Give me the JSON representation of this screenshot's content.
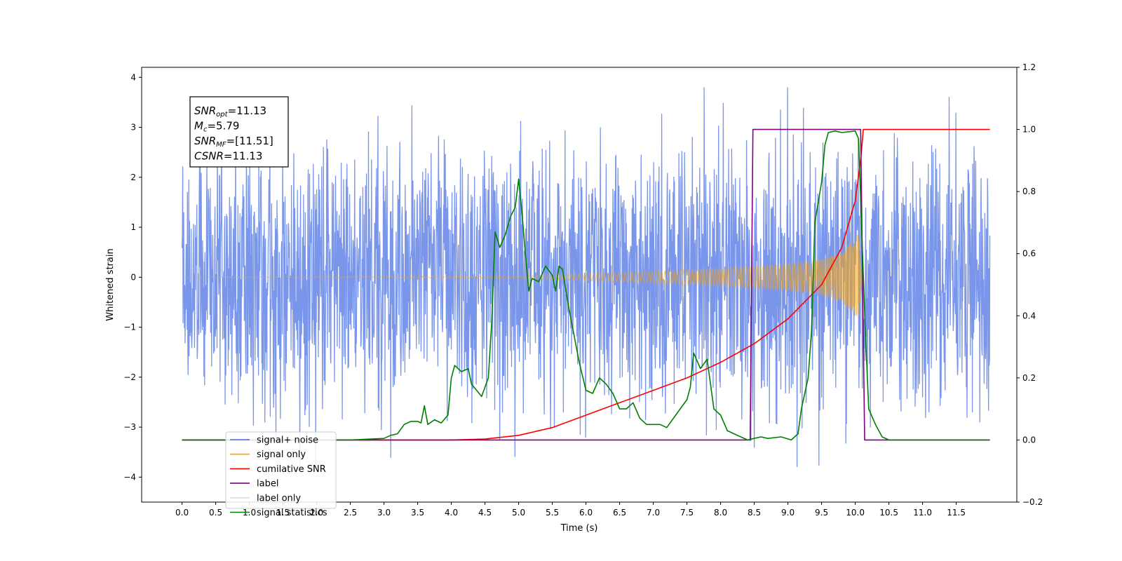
{
  "chart_data": {
    "type": "line",
    "xlabel": "Time (s)",
    "ylabel_left": "Whitened strain",
    "xlim": [
      -0.6,
      12.4
    ],
    "ylim_left": [
      -4.5,
      4.2
    ],
    "ylim_right": [
      -0.2,
      1.2
    ],
    "xticks": [
      0.0,
      0.5,
      1.0,
      1.5,
      2.0,
      2.5,
      3.0,
      3.5,
      4.0,
      4.5,
      5.0,
      5.5,
      6.0,
      6.5,
      7.0,
      7.5,
      8.0,
      8.5,
      9.0,
      9.5,
      10.0,
      10.5,
      11.0,
      11.5
    ],
    "xtick_labels": [
      "0.0",
      "0.5",
      "1.0",
      "1.5",
      "2.0",
      "2.5",
      "3.0",
      "3.5",
      "4.0",
      "4.5",
      "5.0",
      "5.5",
      "6.0",
      "6.5",
      "7.0",
      "7.5",
      "8.0",
      "8.5",
      "9.0",
      "9.5",
      "10.0",
      "10.5",
      "11.0",
      "11.5"
    ],
    "yticks_left": [
      4,
      3,
      2,
      1,
      0,
      -1,
      -2,
      -3,
      -4
    ],
    "ytick_labels_left": [
      "4",
      "3",
      "2",
      "1",
      "0",
      "−1",
      "−2",
      "−3",
      "−4"
    ],
    "yticks_right": [
      1.2,
      1.0,
      0.8,
      0.6,
      0.4,
      0.2,
      0.0,
      -0.2
    ],
    "ytick_labels_right": [
      "1.2",
      "1.0",
      "0.8",
      "0.6",
      "0.4",
      "0.2",
      "0.0",
      "−0.2"
    ],
    "grid": false,
    "legend_position": "lower-left",
    "annotation_box": [
      {
        "base": "SNR",
        "sub": "opt",
        "value": "=11.13"
      },
      {
        "base": "M",
        "sub": "c",
        "value": "=5.79"
      },
      {
        "base": "SNR",
        "sub": "MF",
        "value": "=[11.51]"
      },
      {
        "base": "CSNR",
        "sub": "",
        "value": "=11.13"
      }
    ],
    "series": [
      {
        "name": "signal+ noise",
        "axis": "left",
        "color": "#4169e1",
        "kind": "noise",
        "x_range": [
          0.0,
          12.0
        ],
        "amplitude_typical": 1.6,
        "amplitude_peak": 3.8
      },
      {
        "name": "signal only",
        "axis": "left",
        "color": "#ffa500",
        "kind": "chirp",
        "x_range": [
          0.0,
          10.1
        ],
        "envelope": [
          [
            0.0,
            0.0
          ],
          [
            5.0,
            0.02
          ],
          [
            6.0,
            0.07
          ],
          [
            7.0,
            0.12
          ],
          [
            8.0,
            0.18
          ],
          [
            9.0,
            0.27
          ],
          [
            9.5,
            0.36
          ],
          [
            9.8,
            0.5
          ],
          [
            10.0,
            0.8
          ],
          [
            10.05,
            0.9
          ],
          [
            10.1,
            0.0
          ]
        ]
      },
      {
        "name": "cumilative SNR",
        "axis": "right",
        "color": "#ff0000",
        "points": [
          [
            0.0,
            0.0
          ],
          [
            4.0,
            0.0
          ],
          [
            4.5,
            0.003
          ],
          [
            5.0,
            0.015
          ],
          [
            5.5,
            0.04
          ],
          [
            6.0,
            0.08
          ],
          [
            6.5,
            0.12
          ],
          [
            7.0,
            0.16
          ],
          [
            7.5,
            0.2
          ],
          [
            8.0,
            0.25
          ],
          [
            8.5,
            0.31
          ],
          [
            9.0,
            0.39
          ],
          [
            9.5,
            0.5
          ],
          [
            9.8,
            0.62
          ],
          [
            10.0,
            0.77
          ],
          [
            10.08,
            0.9
          ],
          [
            10.12,
            1.0
          ],
          [
            12.0,
            1.0
          ]
        ]
      },
      {
        "name": "label",
        "axis": "right",
        "color": "#800080",
        "points": [
          [
            0.0,
            0.0
          ],
          [
            8.44,
            0.0
          ],
          [
            8.48,
            1.0
          ],
          [
            10.08,
            1.0
          ],
          [
            10.14,
            0.0
          ],
          [
            12.0,
            0.0
          ]
        ]
      },
      {
        "name": "label only",
        "axis": "right",
        "color": "#dddddd",
        "legend_only": true
      },
      {
        "name": "signal statistics",
        "axis": "right",
        "color": "#008000",
        "points": [
          [
            0.0,
            0.0
          ],
          [
            2.5,
            0.0
          ],
          [
            2.8,
            0.003
          ],
          [
            3.0,
            0.005
          ],
          [
            3.1,
            0.015
          ],
          [
            3.2,
            0.02
          ],
          [
            3.3,
            0.05
          ],
          [
            3.4,
            0.06
          ],
          [
            3.5,
            0.06
          ],
          [
            3.55,
            0.055
          ],
          [
            3.6,
            0.11
          ],
          [
            3.65,
            0.05
          ],
          [
            3.75,
            0.065
          ],
          [
            3.85,
            0.055
          ],
          [
            3.95,
            0.08
          ],
          [
            4.0,
            0.2
          ],
          [
            4.05,
            0.24
          ],
          [
            4.15,
            0.22
          ],
          [
            4.25,
            0.23
          ],
          [
            4.3,
            0.18
          ],
          [
            4.45,
            0.14
          ],
          [
            4.55,
            0.2
          ],
          [
            4.6,
            0.38
          ],
          [
            4.65,
            0.67
          ],
          [
            4.72,
            0.62
          ],
          [
            4.8,
            0.66
          ],
          [
            4.88,
            0.72
          ],
          [
            4.95,
            0.75
          ],
          [
            5.0,
            0.84
          ],
          [
            5.05,
            0.73
          ],
          [
            5.1,
            0.6
          ],
          [
            5.15,
            0.48
          ],
          [
            5.2,
            0.52
          ],
          [
            5.3,
            0.51
          ],
          [
            5.4,
            0.56
          ],
          [
            5.5,
            0.53
          ],
          [
            5.55,
            0.48
          ],
          [
            5.6,
            0.56
          ],
          [
            5.65,
            0.55
          ],
          [
            5.75,
            0.42
          ],
          [
            5.9,
            0.25
          ],
          [
            6.0,
            0.16
          ],
          [
            6.1,
            0.15
          ],
          [
            6.2,
            0.2
          ],
          [
            6.3,
            0.18
          ],
          [
            6.4,
            0.15
          ],
          [
            6.5,
            0.1
          ],
          [
            6.6,
            0.1
          ],
          [
            6.7,
            0.12
          ],
          [
            6.8,
            0.07
          ],
          [
            6.9,
            0.05
          ],
          [
            7.0,
            0.05
          ],
          [
            7.1,
            0.05
          ],
          [
            7.2,
            0.04
          ],
          [
            7.3,
            0.07
          ],
          [
            7.4,
            0.1
          ],
          [
            7.5,
            0.13
          ],
          [
            7.55,
            0.17
          ],
          [
            7.6,
            0.28
          ],
          [
            7.7,
            0.23
          ],
          [
            7.8,
            0.26
          ],
          [
            7.9,
            0.1
          ],
          [
            8.0,
            0.08
          ],
          [
            8.1,
            0.03
          ],
          [
            8.2,
            0.02
          ],
          [
            8.3,
            0.01
          ],
          [
            8.4,
            0.0
          ],
          [
            8.5,
            0.005
          ],
          [
            8.6,
            0.01
          ],
          [
            8.7,
            0.005
          ],
          [
            8.9,
            0.01
          ],
          [
            9.05,
            0.0
          ],
          [
            9.15,
            0.02
          ],
          [
            9.2,
            0.1
          ],
          [
            9.3,
            0.2
          ],
          [
            9.35,
            0.35
          ],
          [
            9.4,
            0.7
          ],
          [
            9.5,
            0.83
          ],
          [
            9.55,
            0.95
          ],
          [
            9.6,
            0.99
          ],
          [
            9.7,
            0.995
          ],
          [
            9.8,
            0.99
          ],
          [
            10.0,
            0.995
          ],
          [
            10.05,
            0.97
          ],
          [
            10.1,
            0.65
          ],
          [
            10.15,
            0.35
          ],
          [
            10.2,
            0.1
          ],
          [
            10.3,
            0.05
          ],
          [
            10.4,
            0.01
          ],
          [
            10.5,
            0.0
          ],
          [
            12.0,
            0.0
          ]
        ]
      }
    ]
  }
}
